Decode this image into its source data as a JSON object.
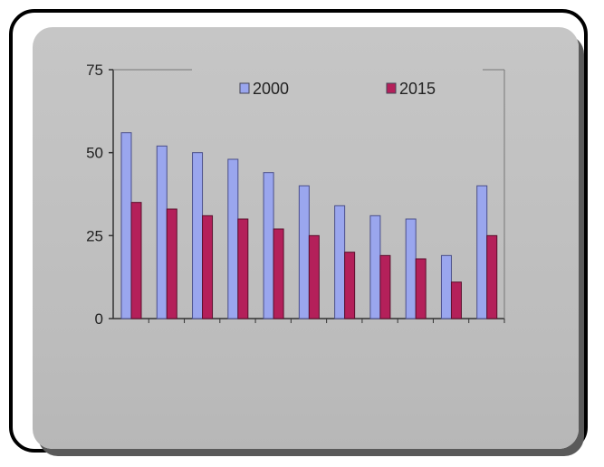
{
  "chart_data": {
    "type": "bar",
    "categories": [
      "",
      "",
      "",
      "",
      "",
      "",
      "",
      "",
      "",
      "",
      ""
    ],
    "series": [
      {
        "name": "2000",
        "color": "#9aa6ee",
        "values": [
          56,
          52,
          50,
          48,
          44,
          40,
          34,
          31,
          30,
          19,
          40
        ]
      },
      {
        "name": "2015",
        "color": "#b4205a",
        "values": [
          35,
          33,
          31,
          30,
          27,
          25,
          20,
          19,
          18,
          11,
          25
        ]
      }
    ],
    "ylim": [
      0,
      75
    ],
    "yticks": [
      "0",
      "25",
      "50",
      "75"
    ],
    "title": "",
    "xlabel": "",
    "ylabel": "",
    "legend_position": "top",
    "grid": false
  }
}
